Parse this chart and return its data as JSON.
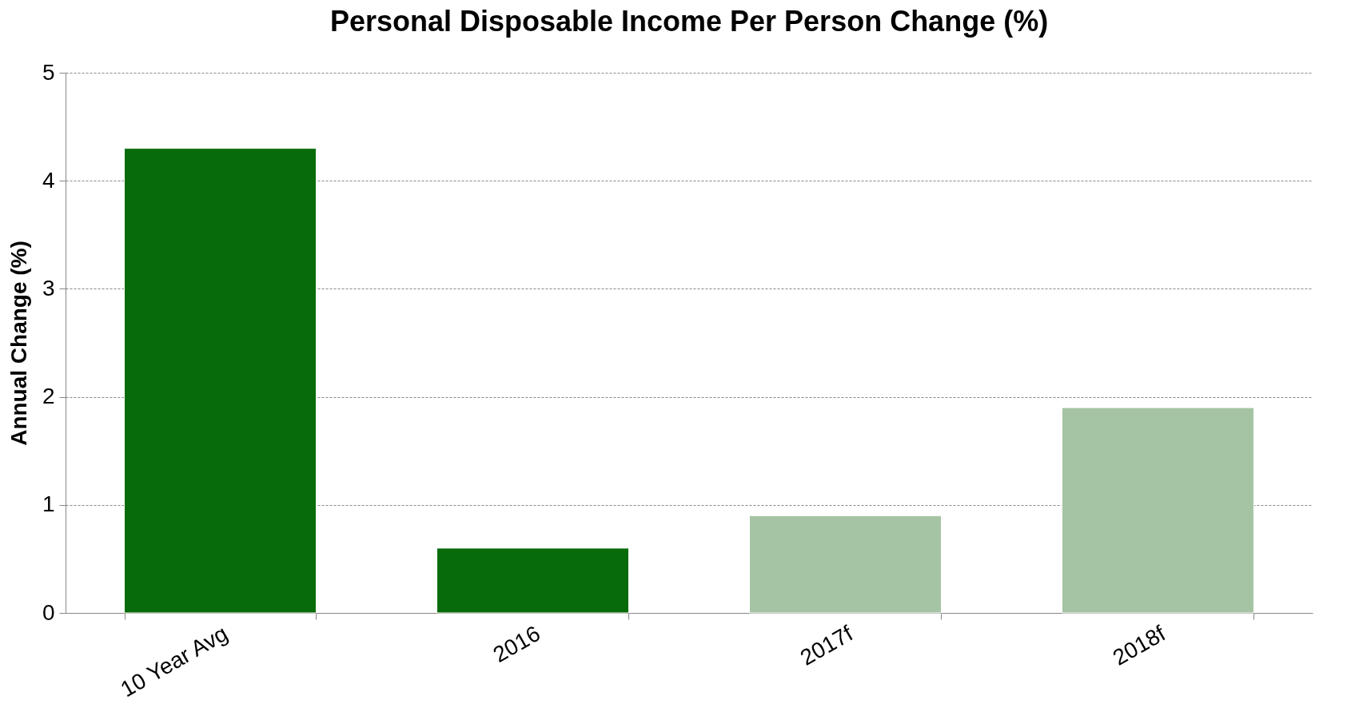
{
  "chart_data": {
    "type": "bar",
    "title": "Personal Disposable Income Per Person Change (%)",
    "ylabel": "Annual Change (%)",
    "categories": [
      "10 Year Avg",
      "2016",
      "2017f",
      "2018f"
    ],
    "values": [
      4.3,
      0.6,
      0.9,
      1.9
    ],
    "colors": [
      "#076b09",
      "#076b09",
      "#a5c4a4",
      "#a5c4a4"
    ],
    "ylim": [
      0,
      5
    ],
    "yticks": [
      0,
      1,
      2,
      3,
      4,
      5
    ],
    "grid": "y"
  }
}
